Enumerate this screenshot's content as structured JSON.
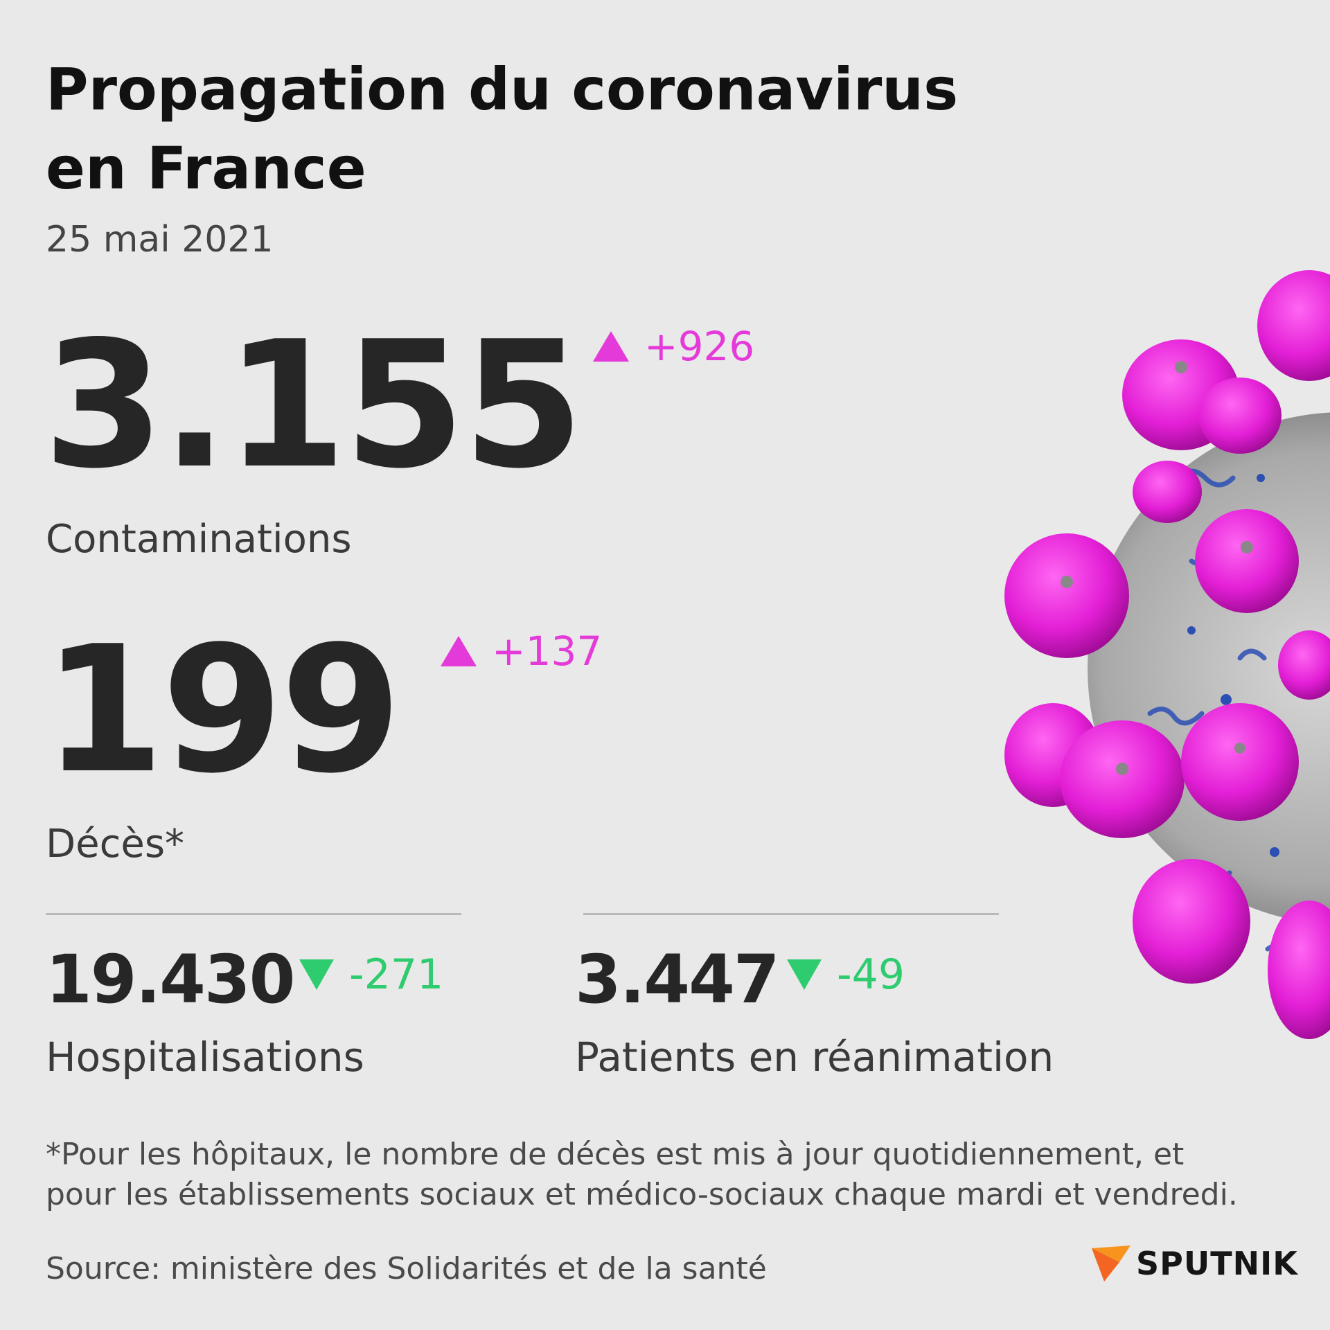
{
  "title_line1": "Propagation du coronavirus",
  "title_line2": "en France",
  "date": "25 mai 2021",
  "contaminations": {
    "value": "3.155",
    "delta": "+926",
    "label": "Contaminations",
    "trend": "up"
  },
  "deces": {
    "value": "199",
    "delta": "+137",
    "label": "Décès*",
    "trend": "up"
  },
  "hospitalisations": {
    "value": "19.430",
    "delta": "-271",
    "label": "Hospitalisations",
    "trend": "down"
  },
  "reanimation": {
    "value": "3.447",
    "delta": "-49",
    "label": "Patients en réanimation",
    "trend": "down"
  },
  "footnote_line1": "*Pour les hôpitaux, le nombre de décès est mis à jour quotidiennement, et",
  "footnote_line2": "pour les établissements sociaux et médico-sociaux chaque mardi et vendredi.",
  "source": "Source: ministère des Solidarités et de la santé",
  "brand": "SPUTNIK",
  "colors": {
    "increase": "#e43ad9",
    "decrease": "#2fcc6f",
    "background": "#e9e9e9",
    "brand_accent": "#f7941d"
  },
  "icons": [
    "triangle-up-icon",
    "triangle-down-icon",
    "sputnik-logo-icon",
    "coronavirus-illustration"
  ]
}
